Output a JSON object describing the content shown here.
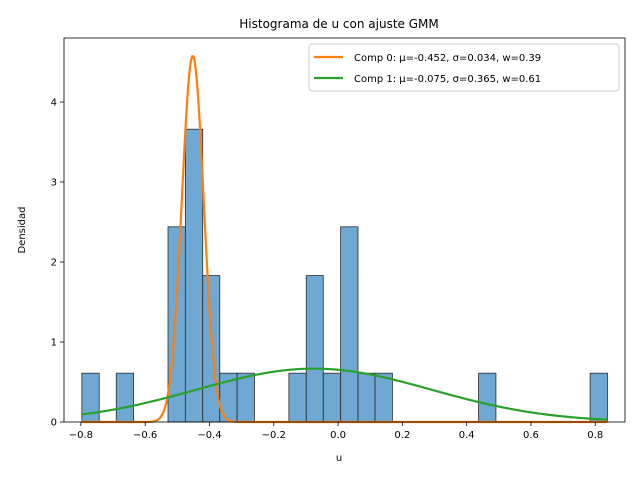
{
  "chart_data": {
    "type": "bar",
    "title": "Histograma de u con ajuste GMM",
    "xlabel": "u",
    "ylabel": "Densidad",
    "xlim": [
      -0.8525,
      0.8925
    ],
    "ylim": [
      0,
      4.8
    ],
    "xticks": [
      -0.8,
      -0.6,
      -0.4,
      -0.2,
      0.0,
      0.2,
      0.4,
      0.6,
      0.8
    ],
    "xtick_labels": [
      "−0.8",
      "−0.6",
      "−0.4",
      "−0.2",
      "0.0",
      "0.2",
      "0.4",
      "0.6",
      "0.8"
    ],
    "yticks": [
      0,
      1,
      2,
      3,
      4
    ],
    "ytick_labels": [
      "0",
      "1",
      "2",
      "3",
      "4"
    ],
    "histogram": {
      "color": "#6fa8d3",
      "edge_color": "#2b2b2b",
      "bins": [
        {
          "x0": -0.797,
          "x1": -0.743,
          "density": 0.61
        },
        {
          "x0": -0.69,
          "x1": -0.636,
          "density": 0.61
        },
        {
          "x0": -0.529,
          "x1": -0.475,
          "density": 2.44
        },
        {
          "x0": -0.475,
          "x1": -0.421,
          "density": 3.66
        },
        {
          "x0": -0.421,
          "x1": -0.368,
          "density": 1.83
        },
        {
          "x0": -0.368,
          "x1": -0.314,
          "density": 0.61
        },
        {
          "x0": -0.314,
          "x1": -0.26,
          "density": 0.61
        },
        {
          "x0": -0.153,
          "x1": -0.099,
          "density": 0.61
        },
        {
          "x0": -0.099,
          "x1": -0.046,
          "density": 1.83
        },
        {
          "x0": -0.046,
          "x1": 0.008,
          "density": 0.61
        },
        {
          "x0": 0.008,
          "x1": 0.062,
          "density": 2.44
        },
        {
          "x0": 0.062,
          "x1": 0.115,
          "density": 0.61
        },
        {
          "x0": 0.115,
          "x1": 0.169,
          "density": 0.61
        },
        {
          "x0": 0.437,
          "x1": 0.491,
          "density": 0.61
        },
        {
          "x0": 0.784,
          "x1": 0.838,
          "density": 0.61
        }
      ]
    },
    "series": [
      {
        "name": "Comp 0: μ=-0.452, σ=0.034, w=0.39",
        "type": "line",
        "mu": -0.452,
        "sigma": 0.034,
        "w": 0.39,
        "color": "#ff7f0e"
      },
      {
        "name": "Comp 1: μ=-0.075, σ=0.365, w=0.61",
        "type": "line",
        "mu": -0.075,
        "sigma": 0.365,
        "w": 0.61,
        "color": "#2ca02c"
      }
    ],
    "curve_x_range": [
      -0.797,
      0.838
    ],
    "legend_position": "top-right"
  }
}
